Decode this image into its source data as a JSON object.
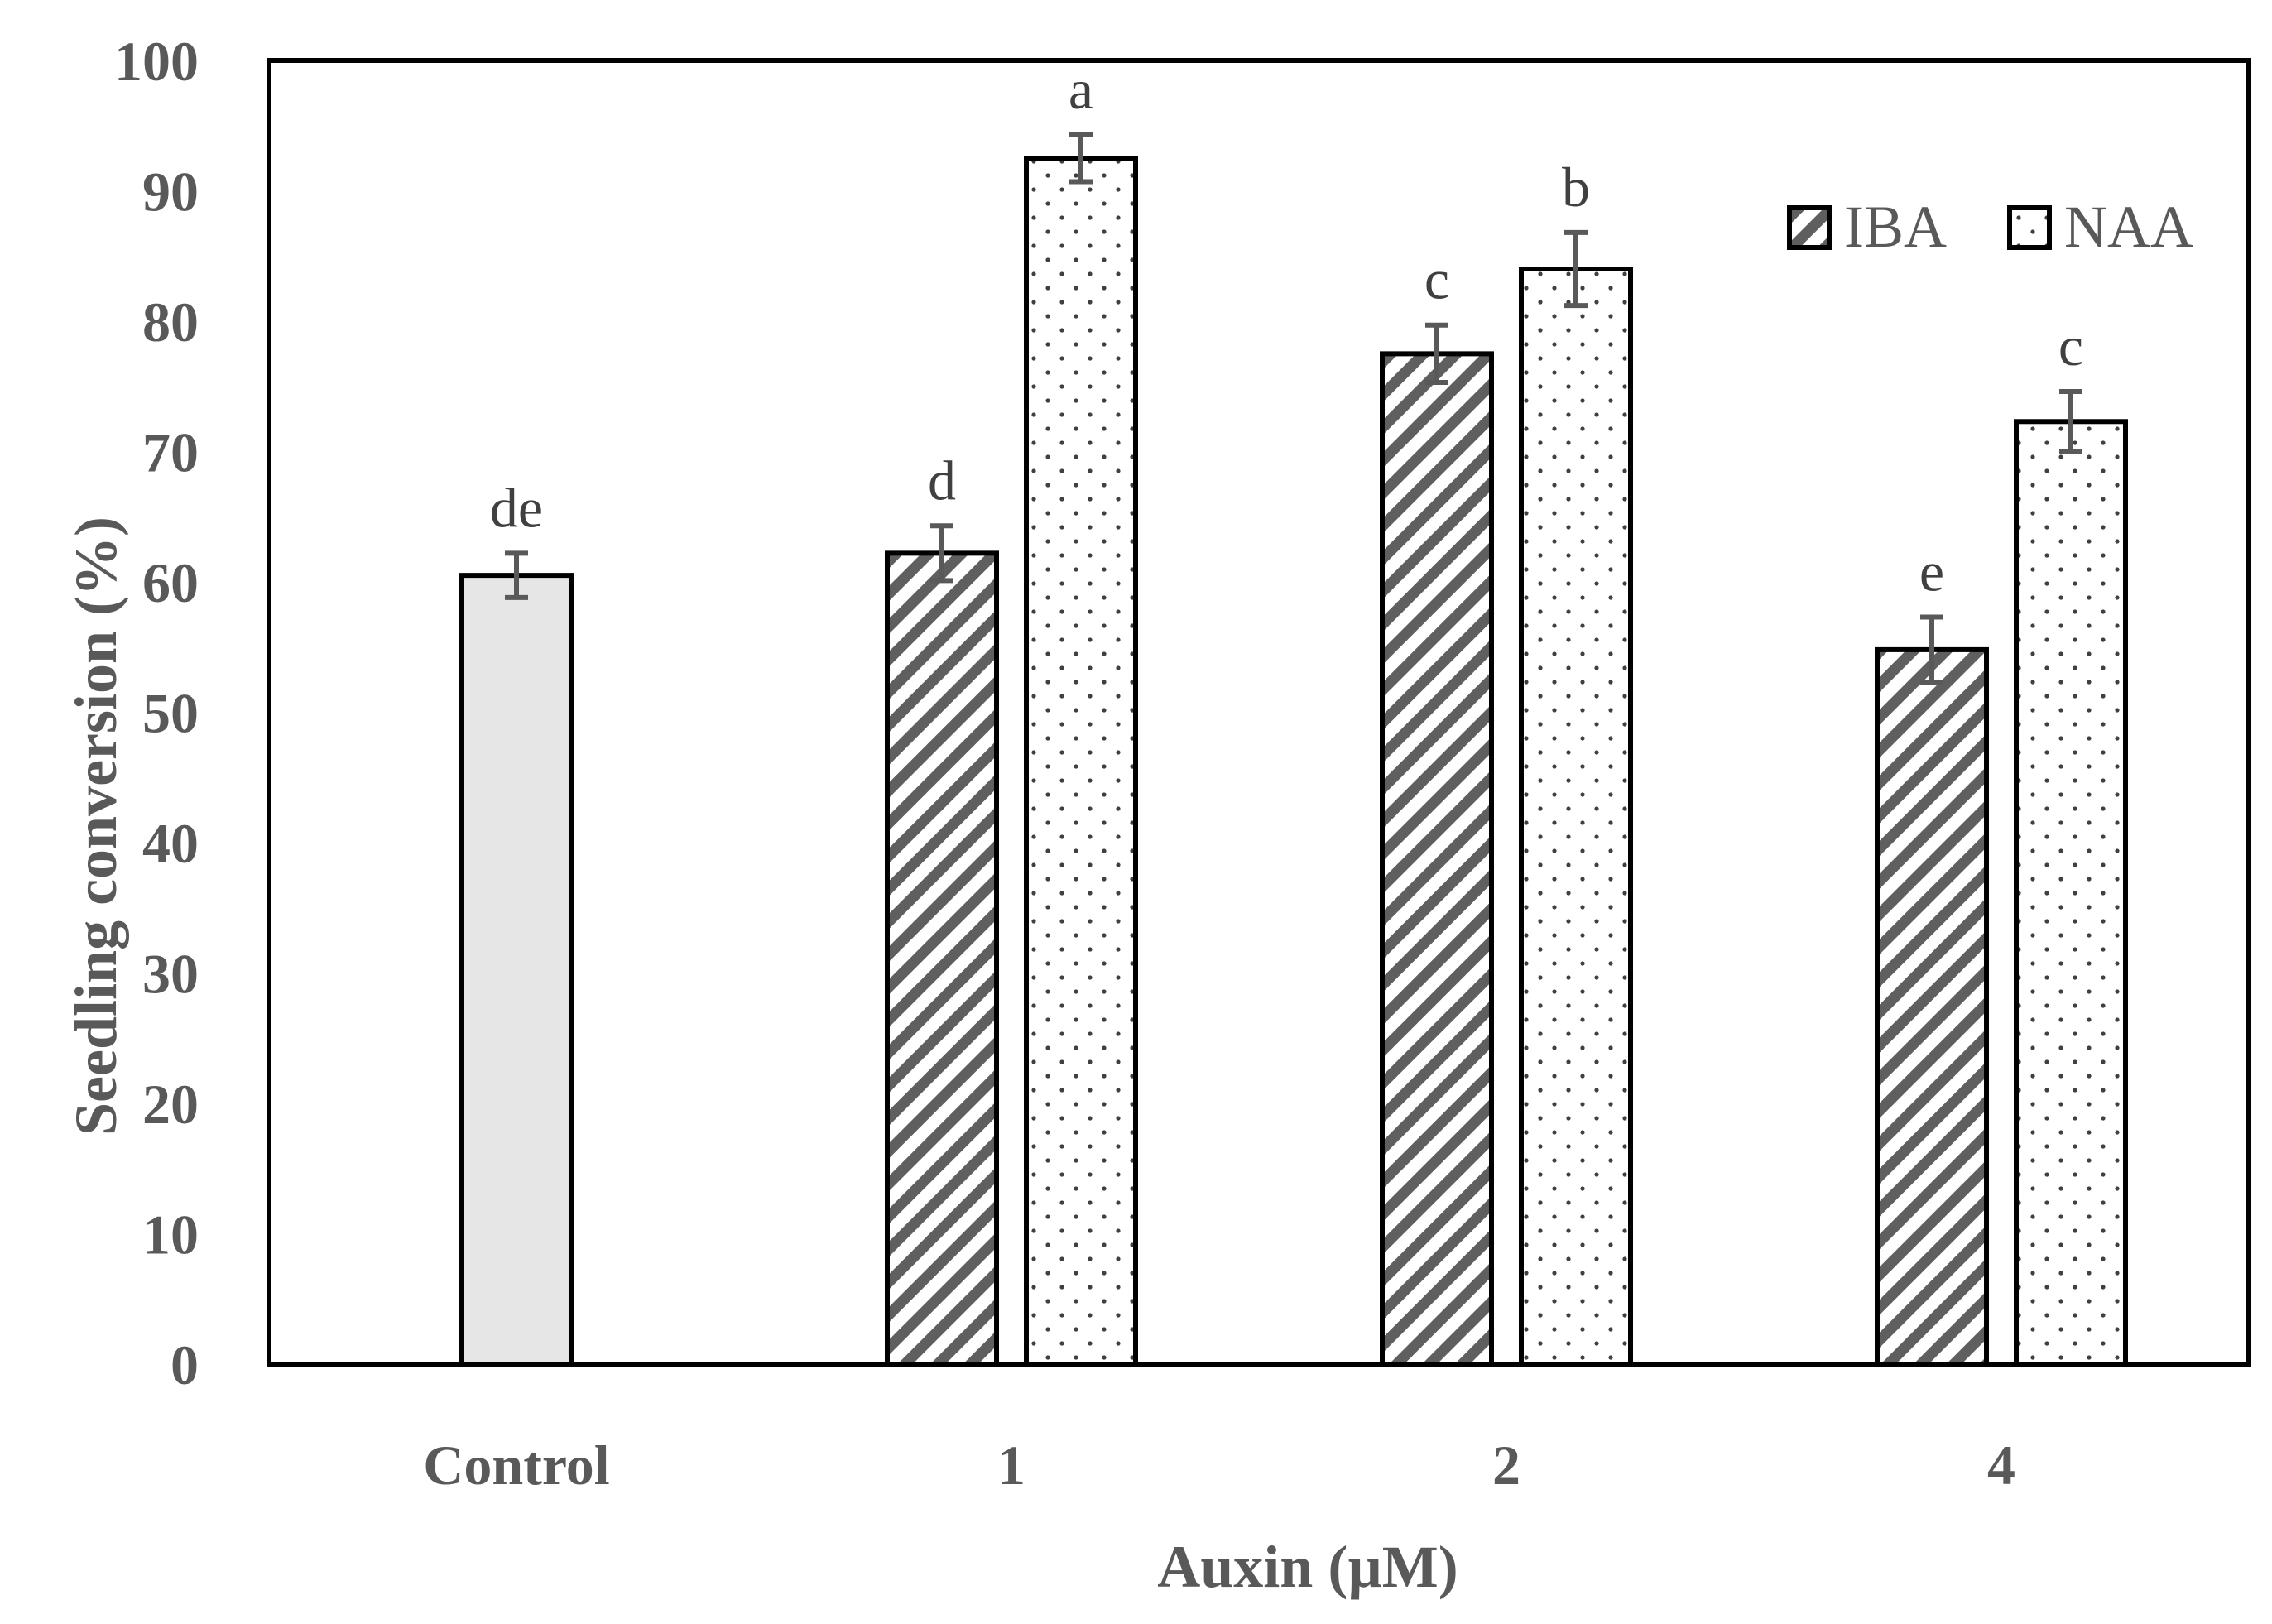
{
  "chart_data": {
    "type": "bar",
    "title": "",
    "xlabel": "Auxin (µM)",
    "ylabel": "Seedling conversion (%)",
    "ylim": [
      0,
      100
    ],
    "yticks": [
      0,
      10,
      20,
      30,
      40,
      50,
      60,
      70,
      80,
      90,
      100
    ],
    "categories": [
      "Control",
      "1",
      "2",
      "4"
    ],
    "legend_position": "top-right",
    "colors": {
      "control_fill": "#e6e6e6",
      "iba_stripe": "#5f5f5f",
      "naa_dot": "#404040",
      "bar_outline": "#000000",
      "error_bar": "#595959"
    },
    "series": [
      {
        "name": "Control",
        "pattern": "solid",
        "in_legend": false,
        "values": [
          60.5,
          null,
          null,
          null
        ],
        "errors": [
          1.7,
          null,
          null,
          null
        ],
        "labels": [
          "de",
          null,
          null,
          null
        ]
      },
      {
        "name": "IBA",
        "pattern": "diagonal-stripes",
        "in_legend": true,
        "values": [
          null,
          62.2,
          77.5,
          54.8
        ],
        "errors": [
          null,
          2.1,
          2.2,
          2.5
        ],
        "labels": [
          null,
          "d",
          "c",
          "e"
        ]
      },
      {
        "name": "NAA",
        "pattern": "dots",
        "in_legend": true,
        "values": [
          null,
          92.5,
          84.0,
          72.3
        ],
        "errors": [
          null,
          1.8,
          2.8,
          2.3
        ],
        "labels": [
          null,
          "a",
          "b",
          "c"
        ]
      }
    ]
  }
}
